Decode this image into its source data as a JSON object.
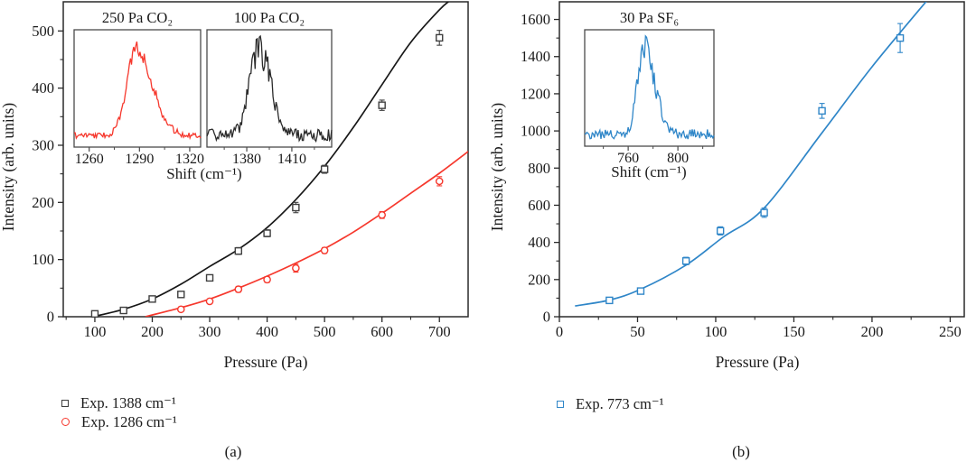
{
  "figure": {
    "background": "#ffffff",
    "captions": {
      "a": "(a)",
      "b": "(b)"
    }
  },
  "colors": {
    "axis": "#2a2a2a",
    "text": "#1a1a1a",
    "inset_border": "#4a4a4a",
    "black_marker": "#3f3f3f",
    "black_line": "#171717",
    "red": "#f6382d",
    "blue": "#2f86c8"
  },
  "chart_data": [
    {
      "id": "a",
      "type": "scatter",
      "xlabel": "Pressure (Pa)",
      "ylabel": "Intensity (arb. units)",
      "xlim": [
        45,
        750
      ],
      "ylim": [
        0,
        551
      ],
      "x_ticks": [
        100,
        200,
        300,
        400,
        500,
        600,
        700
      ],
      "x_minor": [
        50,
        150,
        250,
        350,
        450,
        550,
        650,
        750
      ],
      "y_ticks": [
        0,
        100,
        200,
        300,
        400,
        500
      ],
      "y_minor": [
        50,
        150,
        250,
        350,
        450
      ],
      "grid": false,
      "legend_position": "below-left",
      "series": [
        {
          "name": "Exp. 1388 cm⁻¹",
          "marker": "square",
          "color": "#3f3f3f",
          "line_color": "#171717",
          "points": [
            [
              100,
              5
            ],
            [
              150,
              11
            ],
            [
              200,
              31
            ],
            [
              250,
              39
            ],
            [
              300,
              68
            ],
            [
              350,
              115
            ],
            [
              400,
              146
            ],
            [
              450,
              191
            ],
            [
              500,
              258
            ],
            [
              600,
              370
            ],
            [
              700,
              488
            ]
          ],
          "errors": [
            4,
            4,
            4,
            5,
            5,
            6,
            6,
            9,
            7,
            9,
            13
          ],
          "fit": [
            [
              97,
              0
            ],
            [
              150,
              13
            ],
            [
              200,
              31
            ],
            [
              250,
              57
            ],
            [
              300,
              88
            ],
            [
              350,
              118
            ],
            [
              400,
              156
            ],
            [
              450,
              205
            ],
            [
              500,
              263
            ],
            [
              550,
              331
            ],
            [
              600,
              406
            ],
            [
              650,
              480
            ],
            [
              700,
              537
            ],
            [
              722,
              556
            ]
          ]
        },
        {
          "name": "Exp. 1286 cm⁻¹",
          "marker": "circle",
          "color": "#f6382d",
          "line_color": "#f6382d",
          "points": [
            [
              250,
              13
            ],
            [
              300,
              27
            ],
            [
              350,
              48
            ],
            [
              400,
              65
            ],
            [
              450,
              85
            ],
            [
              500,
              116
            ],
            [
              600,
              178
            ],
            [
              700,
              237
            ]
          ],
          "errors": [
            4,
            4,
            5,
            5,
            7,
            5,
            6,
            8
          ],
          "fit": [
            [
              188,
              0
            ],
            [
              250,
              16
            ],
            [
              300,
              31
            ],
            [
              350,
              50
            ],
            [
              400,
              71
            ],
            [
              450,
              94
            ],
            [
              500,
              119
            ],
            [
              550,
              148
            ],
            [
              600,
              181
            ],
            [
              650,
              216
            ],
            [
              700,
              251
            ],
            [
              750,
              289
            ]
          ]
        }
      ],
      "insets": [
        {
          "title": "250 Pa CO₂",
          "color": "#f6382d",
          "x_range": [
            1251,
            1326.5
          ],
          "ticks": [
            1260,
            1290,
            1320
          ],
          "minor_ticks": [
            1275,
            1305
          ],
          "peak_center": 1288,
          "sigma_left": 5.5,
          "sigma_right": 9.5,
          "noise": 0.055,
          "seed": 7
        },
        {
          "title": "100 Pa CO₂",
          "color": "#2b2b2b",
          "x_range": [
            1353.5,
            1436.5
          ],
          "ticks": [
            1380,
            1410
          ],
          "minor_ticks": [
            1365,
            1395,
            1425
          ],
          "peak_center": 1388,
          "sigma_left": 6,
          "sigma_right": 8,
          "noise": 0.12,
          "seed": 13
        }
      ],
      "inset_xlabel": "Shift (cm⁻¹)",
      "caption": "(a)"
    },
    {
      "id": "b",
      "type": "scatter",
      "xlabel": "Pressure (Pa)",
      "ylabel": "Intensity (arb. units)",
      "xlim": [
        0,
        259
      ],
      "ylim": [
        0,
        1695
      ],
      "x_ticks": [
        0,
        50,
        100,
        150,
        200,
        250
      ],
      "x_minor": [
        25,
        75,
        125,
        175,
        225
      ],
      "y_ticks": [
        0,
        200,
        400,
        600,
        800,
        1000,
        1200,
        1400,
        1600
      ],
      "y_minor": [
        100,
        300,
        500,
        700,
        900,
        1100,
        1300,
        1500
      ],
      "grid": false,
      "legend_position": "below-left",
      "series": [
        {
          "name": "Exp. 773 cm⁻¹",
          "marker": "square",
          "color": "#2f86c8",
          "line_color": "#2f86c8",
          "points": [
            [
              32,
              88
            ],
            [
              52,
              138
            ],
            [
              81,
              300
            ],
            [
              103,
              462
            ],
            [
              131,
              560
            ],
            [
              168,
              1108
            ],
            [
              218,
              1500
            ]
          ],
          "errors": [
            16,
            16,
            20,
            22,
            25,
            40,
            78
          ],
          "fit": [
            [
              10,
              58
            ],
            [
              32,
              90
            ],
            [
              52,
              148
            ],
            [
              81,
              278
            ],
            [
              105,
              430
            ],
            [
              131,
              585
            ],
            [
              168,
              990
            ],
            [
              200,
              1345
            ],
            [
              236,
              1710
            ]
          ]
        }
      ],
      "insets": [
        {
          "title": "30 Pa SF₆",
          "color": "#2f86c8",
          "x_range": [
            725,
            829
          ],
          "ticks": [
            760,
            800
          ],
          "minor_ticks": [
            740,
            780,
            820
          ],
          "peak_center": 773,
          "sigma_left": 5.5,
          "sigma_right": 8.5,
          "noise": 0.1,
          "seed": 21
        }
      ],
      "inset_xlabel": "Shift (cm⁻¹)",
      "caption": "(b)"
    }
  ]
}
